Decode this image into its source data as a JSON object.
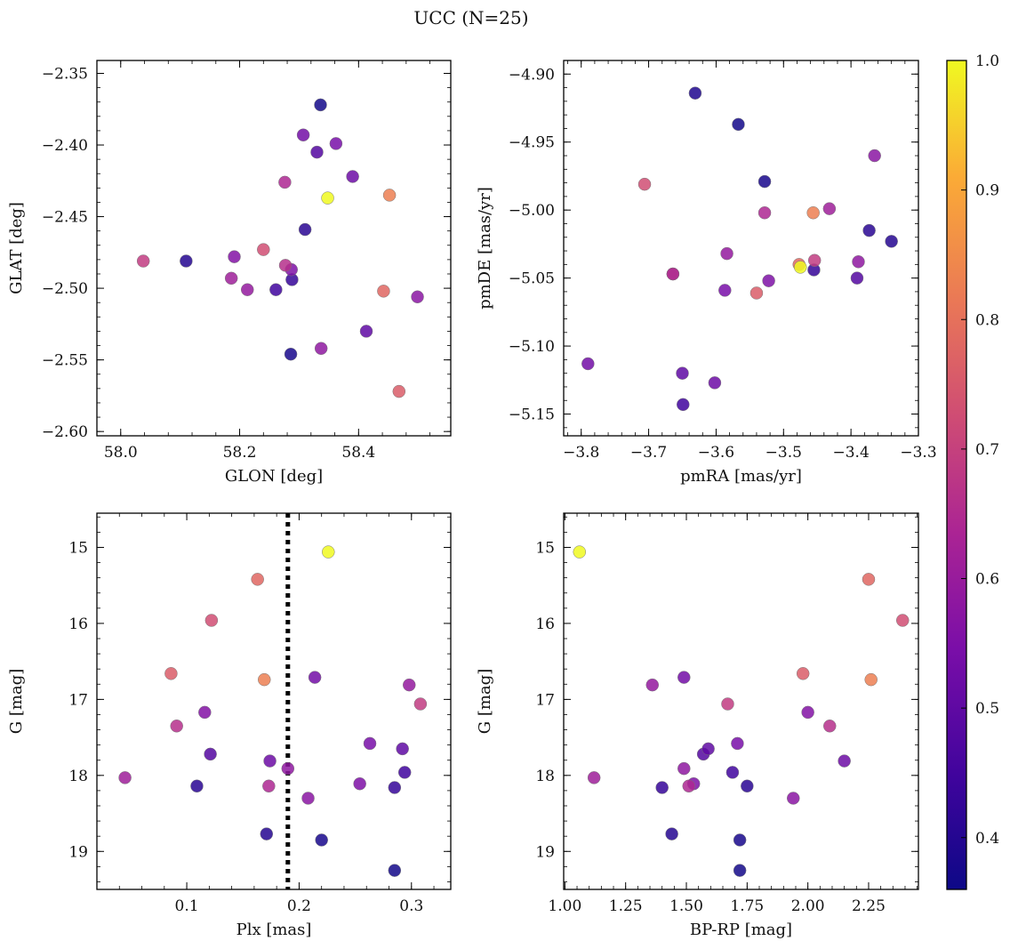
{
  "chart_data": {
    "type": "scatter",
    "title": "UCC (N=25)",
    "colormap": "plasma",
    "colorbar": {
      "range": [
        0.36,
        1.0
      ],
      "ticks": [
        0.4,
        0.5,
        0.6,
        0.7,
        0.8,
        0.9,
        1.0
      ],
      "tick_labels": [
        "0.4",
        "0.5",
        "0.6",
        "0.7",
        "0.8",
        "0.9",
        "1.0"
      ]
    },
    "plx_marker": 0.19,
    "stars": [
      {
        "glon": 58.348,
        "glat": -2.437,
        "pmra": -3.475,
        "pmde": -5.042,
        "plx": 0.226,
        "g": 15.06,
        "bprp": 1.06,
        "p": 1.0
      },
      {
        "glon": 58.452,
        "glat": -2.435,
        "pmra": -3.456,
        "pmde": -5.002,
        "plx": 0.169,
        "g": 16.74,
        "bprp": 2.26,
        "p": 0.83
      },
      {
        "glon": 58.442,
        "glat": -2.502,
        "pmra": -3.477,
        "pmde": -5.04,
        "plx": 0.163,
        "g": 15.42,
        "bprp": 2.25,
        "p": 0.78
      },
      {
        "glon": 58.468,
        "glat": -2.572,
        "pmra": -3.54,
        "pmde": -5.061,
        "plx": 0.086,
        "g": 16.66,
        "bprp": 1.98,
        "p": 0.76
      },
      {
        "glon": 58.24,
        "glat": -2.473,
        "pmra": -3.706,
        "pmde": -4.981,
        "plx": 0.122,
        "g": 15.96,
        "bprp": 2.39,
        "p": 0.73
      },
      {
        "glon": 58.038,
        "glat": -2.481,
        "pmra": -3.454,
        "pmde": -5.037,
        "plx": 0.308,
        "g": 17.06,
        "bprp": 1.67,
        "p": 0.69
      },
      {
        "glon": 58.277,
        "glat": -2.484,
        "pmra": -3.664,
        "pmde": -5.047,
        "plx": 0.091,
        "g": 17.35,
        "bprp": 2.09,
        "p": 0.66
      },
      {
        "glon": 58.276,
        "glat": -2.426,
        "pmra": -3.528,
        "pmde": -5.002,
        "plx": 0.173,
        "g": 18.14,
        "bprp": 1.51,
        "p": 0.64
      },
      {
        "glon": 58.186,
        "glat": -2.493,
        "pmra": -3.432,
        "pmde": -4.999,
        "plx": 0.045,
        "g": 18.03,
        "bprp": 1.12,
        "p": 0.61
      },
      {
        "glon": 58.213,
        "glat": -2.501,
        "pmra": -3.584,
        "pmde": -5.032,
        "plx": 0.298,
        "g": 16.81,
        "bprp": 1.36,
        "p": 0.59
      },
      {
        "glon": 58.337,
        "glat": -2.542,
        "pmra": -3.389,
        "pmde": -5.038,
        "plx": 0.19,
        "g": 17.91,
        "bprp": 1.49,
        "p": 0.58
      },
      {
        "glon": 58.499,
        "glat": -2.506,
        "pmra": -3.365,
        "pmde": -4.96,
        "plx": 0.208,
        "g": 18.3,
        "bprp": 1.94,
        "p": 0.57
      },
      {
        "glon": 58.191,
        "glat": -2.478,
        "pmra": -3.664,
        "pmde": -5.047,
        "plx": 0.116,
        "g": 17.17,
        "bprp": 2.0,
        "p": 0.56
      },
      {
        "glon": 58.287,
        "glat": -2.487,
        "pmra": -3.522,
        "pmde": -5.052,
        "plx": 0.254,
        "g": 18.11,
        "bprp": 1.53,
        "p": 0.55
      },
      {
        "glon": 58.362,
        "glat": -2.399,
        "pmra": -3.587,
        "pmde": -5.059,
        "plx": 0.263,
        "g": 17.58,
        "bprp": 1.71,
        "p": 0.54
      },
      {
        "glon": 58.307,
        "glat": -2.393,
        "pmra": -3.79,
        "pmde": -5.113,
        "plx": 0.214,
        "g": 16.71,
        "bprp": 1.49,
        "p": 0.53
      },
      {
        "glon": 58.39,
        "glat": -2.422,
        "pmra": -3.602,
        "pmde": -5.127,
        "plx": 0.174,
        "g": 17.81,
        "bprp": 2.15,
        "p": 0.52
      },
      {
        "glon": 58.413,
        "glat": -2.53,
        "pmra": -3.65,
        "pmde": -5.12,
        "plx": 0.292,
        "g": 17.65,
        "bprp": 1.59,
        "p": 0.5
      },
      {
        "glon": 58.33,
        "glat": -2.405,
        "pmra": -3.391,
        "pmde": -5.05,
        "plx": 0.121,
        "g": 17.72,
        "bprp": 1.57,
        "p": 0.48
      },
      {
        "glon": 58.261,
        "glat": -2.501,
        "pmra": -3.649,
        "pmde": -5.143,
        "plx": 0.294,
        "g": 17.96,
        "bprp": 1.69,
        "p": 0.45
      },
      {
        "glon": 58.288,
        "glat": -2.494,
        "pmra": -3.455,
        "pmde": -5.044,
        "plx": 0.285,
        "g": 18.16,
        "bprp": 1.4,
        "p": 0.43
      },
      {
        "glon": 58.31,
        "glat": -2.459,
        "pmra": -3.373,
        "pmde": -5.015,
        "plx": 0.109,
        "g": 18.14,
        "bprp": 1.75,
        "p": 0.41
      },
      {
        "glon": 58.11,
        "glat": -2.481,
        "pmra": -3.34,
        "pmde": -5.023,
        "plx": 0.171,
        "g": 18.77,
        "bprp": 1.44,
        "p": 0.4
      },
      {
        "glon": 58.286,
        "glat": -2.546,
        "pmra": -3.528,
        "pmde": -4.979,
        "plx": 0.22,
        "g": 18.85,
        "bprp": 1.72,
        "p": 0.38
      },
      {
        "glon": 58.336,
        "glat": -2.372,
        "pmra": -3.567,
        "pmde": -4.937,
        "plx": 0.285,
        "g": 19.25,
        "bprp": 1.72,
        "p": 0.37
      },
      {
        "glon": 0,
        "glat": 0,
        "pmra": -3.631,
        "pmde": -4.914,
        "plx": 0,
        "g": 0,
        "bprp": 0,
        "p": 0.39,
        "panel_only": "pm"
      }
    ],
    "panels": [
      {
        "id": "glon-glat",
        "xkey": "glon",
        "ykey": "glat",
        "xlabel": "GLON [deg]",
        "ylabel": "GLAT [deg]",
        "xlim": [
          57.96,
          58.555
        ],
        "ylim": [
          -2.603,
          -2.341
        ],
        "xticks": [
          58.0,
          58.2,
          58.4
        ],
        "xtick_labels": [
          "58.0",
          "58.2",
          "58.4"
        ],
        "yticks": [
          -2.35,
          -2.4,
          -2.45,
          -2.5,
          -2.55,
          -2.6
        ],
        "ytick_labels": [
          "−2.35",
          "−2.40",
          "−2.45",
          "−2.50",
          "−2.55",
          "−2.60"
        ]
      },
      {
        "id": "pmra-pmde",
        "xkey": "pmra",
        "ykey": "pmde",
        "xlabel": "pmRA [mas/yr]",
        "ylabel": "pmDE [mas/yr]",
        "xlim": [
          -3.826,
          -3.3
        ],
        "ylim": [
          -5.166,
          -4.89
        ],
        "xticks": [
          -3.8,
          -3.7,
          -3.6,
          -3.5,
          -3.4,
          -3.3
        ],
        "xtick_labels": [
          "−3.8",
          "−3.7",
          "−3.6",
          "−3.5",
          "−3.4",
          "−3.3"
        ],
        "yticks": [
          -4.9,
          -4.95,
          -5.0,
          -5.05,
          -5.1,
          -5.15
        ],
        "ytick_labels": [
          "−4.90",
          "−4.95",
          "−5.00",
          "−5.05",
          "−5.10",
          "−5.15"
        ]
      },
      {
        "id": "plx-g",
        "xkey": "plx",
        "ykey": "g",
        "xlabel": "Plx [mas]",
        "ylabel": "G [mag]",
        "xlim": [
          0.02,
          0.335
        ],
        "ylim": [
          19.5,
          14.55
        ],
        "y_inverted": true,
        "xticks": [
          0.1,
          0.2,
          0.3
        ],
        "xtick_labels": [
          "0.1",
          "0.2",
          "0.3"
        ],
        "yticks": [
          15,
          16,
          17,
          18,
          19
        ],
        "ytick_labels": [
          "15",
          "16",
          "17",
          "18",
          "19"
        ]
      },
      {
        "id": "bprp-g",
        "xkey": "bprp",
        "ykey": "g",
        "xlabel": "BP-RP [mag]",
        "ylabel": "G [mag]",
        "xlim": [
          0.995,
          2.455
        ],
        "ylim": [
          19.5,
          14.55
        ],
        "y_inverted": true,
        "xticks": [
          1.0,
          1.25,
          1.5,
          1.75,
          2.0,
          2.25
        ],
        "xtick_labels": [
          "1.00",
          "1.25",
          "1.50",
          "1.75",
          "2.00",
          "2.25"
        ],
        "yticks": [
          15,
          16,
          17,
          18,
          19
        ],
        "ytick_labels": [
          "15",
          "16",
          "17",
          "18",
          "19"
        ]
      }
    ]
  }
}
